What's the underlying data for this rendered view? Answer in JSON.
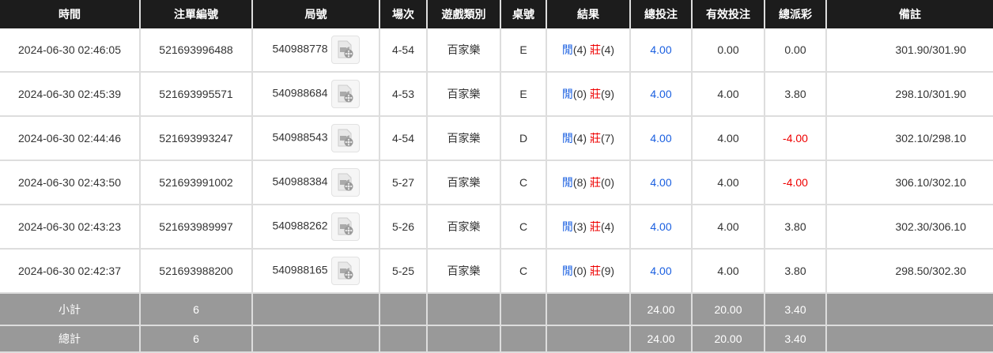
{
  "headers": [
    "時間",
    "注單編號",
    "局號",
    "場次",
    "遊戲類別",
    "桌號",
    "結果",
    "總投注",
    "有效投注",
    "總派彩",
    "備註"
  ],
  "rows": [
    {
      "time": "2024-06-30 02:46:05",
      "bet_id": "521693996488",
      "round": "540988778",
      "shoe": "4-54",
      "game": "百家樂",
      "table": "E",
      "player_label": "閒",
      "player": "(4)",
      "banker_label": "莊",
      "banker": "(4)",
      "total_bet": "4.00",
      "valid_bet": "0.00",
      "payout": "0.00",
      "payout_negative": false,
      "remark": "301.90/301.90"
    },
    {
      "time": "2024-06-30 02:45:39",
      "bet_id": "521693995571",
      "round": "540988684",
      "shoe": "4-53",
      "game": "百家樂",
      "table": "E",
      "player_label": "閒",
      "player": "(0)",
      "banker_label": "莊",
      "banker": "(9)",
      "total_bet": "4.00",
      "valid_bet": "4.00",
      "payout": "3.80",
      "payout_negative": false,
      "remark": "298.10/301.90"
    },
    {
      "time": "2024-06-30 02:44:46",
      "bet_id": "521693993247",
      "round": "540988543",
      "shoe": "4-54",
      "game": "百家樂",
      "table": "D",
      "player_label": "閒",
      "player": "(4)",
      "banker_label": "莊",
      "banker": "(7)",
      "total_bet": "4.00",
      "valid_bet": "4.00",
      "payout": "-4.00",
      "payout_negative": true,
      "remark": "302.10/298.10"
    },
    {
      "time": "2024-06-30 02:43:50",
      "bet_id": "521693991002",
      "round": "540988384",
      "shoe": "5-27",
      "game": "百家樂",
      "table": "C",
      "player_label": "閒",
      "player": "(8)",
      "banker_label": "莊",
      "banker": "(0)",
      "total_bet": "4.00",
      "valid_bet": "4.00",
      "payout": "-4.00",
      "payout_negative": true,
      "remark": "306.10/302.10"
    },
    {
      "time": "2024-06-30 02:43:23",
      "bet_id": "521693989997",
      "round": "540988262",
      "shoe": "5-26",
      "game": "百家樂",
      "table": "C",
      "player_label": "閒",
      "player": "(3)",
      "banker_label": "莊",
      "banker": "(4)",
      "total_bet": "4.00",
      "valid_bet": "4.00",
      "payout": "3.80",
      "payout_negative": false,
      "remark": "302.30/306.10"
    },
    {
      "time": "2024-06-30 02:42:37",
      "bet_id": "521693988200",
      "round": "540988165",
      "shoe": "5-25",
      "game": "百家樂",
      "table": "C",
      "player_label": "閒",
      "player": "(0)",
      "banker_label": "莊",
      "banker": "(9)",
      "total_bet": "4.00",
      "valid_bet": "4.00",
      "payout": "3.80",
      "payout_negative": false,
      "remark": "298.50/302.30"
    }
  ],
  "subtotal": {
    "label": "小計",
    "count": "6",
    "total_bet": "24.00",
    "valid_bet": "20.00",
    "payout": "3.40"
  },
  "grandtotal": {
    "label": "總計",
    "count": "6",
    "total_bet": "24.00",
    "valid_bet": "20.00",
    "payout": "3.40"
  },
  "colors": {
    "header_bg": "#1c1c1c",
    "summary_bg": "#999999",
    "blue": "#1a5fe0",
    "red": "#ee0000"
  },
  "icons": {
    "replay": "video-replay-icon"
  }
}
